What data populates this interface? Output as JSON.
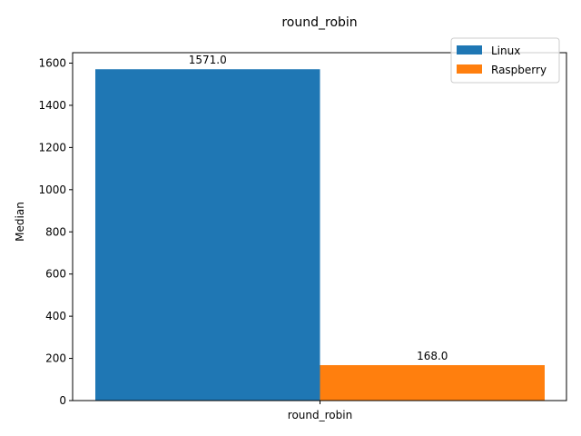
{
  "chart_data": {
    "type": "bar",
    "title": "round_robin",
    "xlabel": "",
    "ylabel": "Median",
    "categories": [
      "round_robin"
    ],
    "series": [
      {
        "name": "Linux",
        "values": [
          1571.0
        ],
        "color": "#1f77b4",
        "label": "1571.0"
      },
      {
        "name": "Raspberry",
        "values": [
          168.0
        ],
        "color": "#ff7f0e",
        "label": "168.0"
      }
    ],
    "yticks": [
      "0",
      "200",
      "400",
      "600",
      "800",
      "1000",
      "1200",
      "1400",
      "1600"
    ],
    "ylim": [
      0,
      1649.55
    ],
    "grid": false,
    "legend_position": "top-right"
  }
}
